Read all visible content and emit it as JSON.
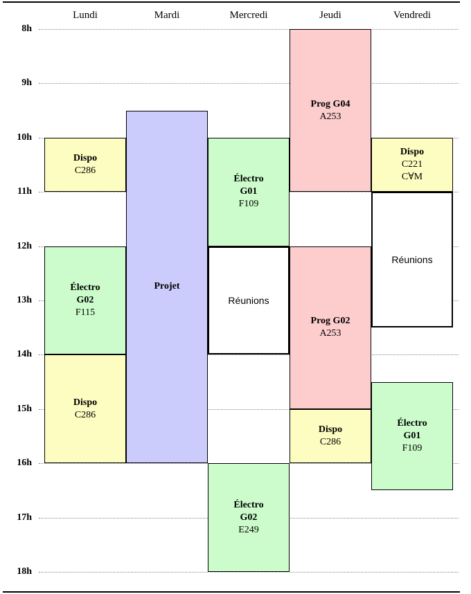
{
  "days": [
    "Lundi",
    "Mardi",
    "Mercredi",
    "Jeudi",
    "Vendredi"
  ],
  "hours": [
    "8h",
    "9h",
    "10h",
    "11h",
    "12h",
    "13h",
    "14h",
    "15h",
    "16h",
    "17h",
    "18h"
  ],
  "events": [
    {
      "day": 0,
      "start": 10,
      "end": 11,
      "kind": "dispo",
      "title": "Dispo",
      "rooms": [
        "C286"
      ]
    },
    {
      "day": 0,
      "start": 12,
      "end": 14,
      "kind": "electro",
      "title": "Électro G02",
      "rooms": [
        "F115"
      ]
    },
    {
      "day": 0,
      "start": 14,
      "end": 16,
      "kind": "dispo",
      "title": "Dispo",
      "rooms": [
        "C286"
      ]
    },
    {
      "day": 1,
      "start": 9.5,
      "end": 16,
      "kind": "projet",
      "title": "Projet",
      "rooms": []
    },
    {
      "day": 2,
      "start": 10,
      "end": 12,
      "kind": "electro",
      "title": "Électro G01",
      "rooms": [
        "F109"
      ]
    },
    {
      "day": 2,
      "start": 12,
      "end": 14,
      "kind": "meeting",
      "title": "Réunions",
      "rooms": []
    },
    {
      "day": 2,
      "start": 16,
      "end": 18,
      "kind": "electro",
      "title": "Électro G02",
      "rooms": [
        "E249"
      ]
    },
    {
      "day": 3,
      "start": 8,
      "end": 11,
      "kind": "prog",
      "title": "Prog G04",
      "rooms": [
        "A253"
      ]
    },
    {
      "day": 3,
      "start": 12,
      "end": 15,
      "kind": "prog",
      "title": "Prog G02",
      "rooms": [
        "A253"
      ]
    },
    {
      "day": 3,
      "start": 15,
      "end": 16,
      "kind": "dispo",
      "title": "Dispo",
      "rooms": [
        "C286"
      ]
    },
    {
      "day": 4,
      "start": 10,
      "end": 11,
      "kind": "dispo",
      "title": "Dispo",
      "rooms": [
        "C221",
        "C∀M"
      ]
    },
    {
      "day": 4,
      "start": 11,
      "end": 13.5,
      "kind": "meeting",
      "title": "Réunions",
      "rooms": []
    },
    {
      "day": 4,
      "start": 14.5,
      "end": 16.5,
      "kind": "electro",
      "title": "Électro G01",
      "rooms": [
        "F109"
      ]
    }
  ]
}
